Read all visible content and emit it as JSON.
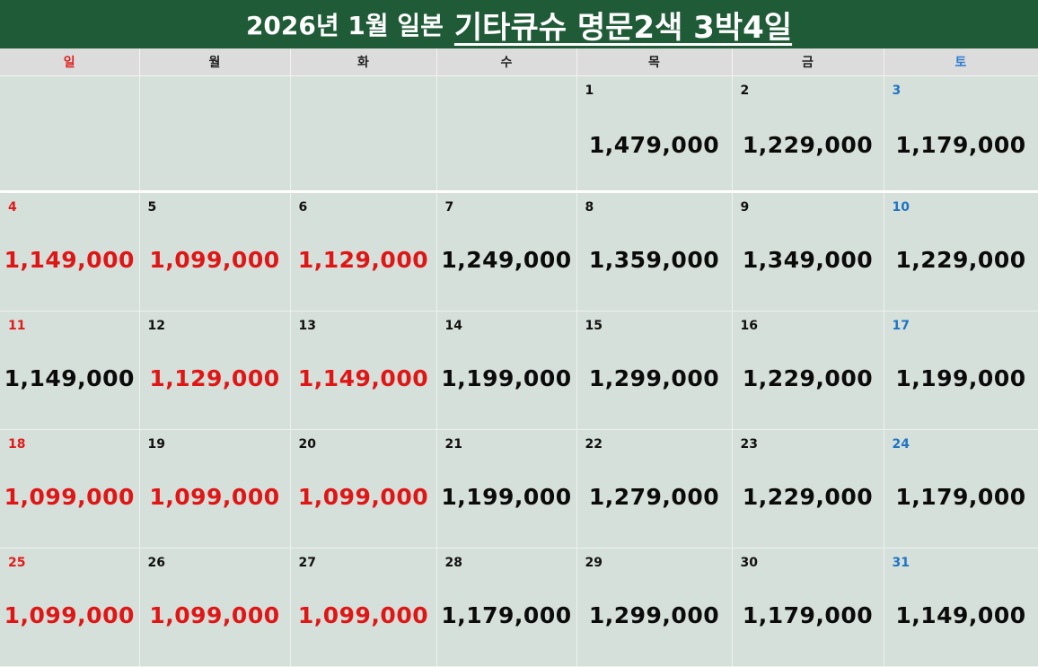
{
  "header": {
    "title_part1": "2026년 1월 일본",
    "title_part2": "기타큐슈 명문2색 3박4일"
  },
  "weekdays": [
    "일",
    "월",
    "화",
    "수",
    "목",
    "금",
    "토"
  ],
  "weeks": [
    [
      {
        "day": "",
        "price": "",
        "red": false
      },
      {
        "day": "",
        "price": "",
        "red": false
      },
      {
        "day": "",
        "price": "",
        "red": false
      },
      {
        "day": "",
        "price": "",
        "red": false
      },
      {
        "day": "1",
        "price": "1,479,000",
        "red": false
      },
      {
        "day": "2",
        "price": "1,229,000",
        "red": false
      },
      {
        "day": "3",
        "price": "1,179,000",
        "red": false
      }
    ],
    [
      {
        "day": "4",
        "price": "1,149,000",
        "red": true
      },
      {
        "day": "5",
        "price": "1,099,000",
        "red": true
      },
      {
        "day": "6",
        "price": "1,129,000",
        "red": true
      },
      {
        "day": "7",
        "price": "1,249,000",
        "red": false
      },
      {
        "day": "8",
        "price": "1,359,000",
        "red": false
      },
      {
        "day": "9",
        "price": "1,349,000",
        "red": false
      },
      {
        "day": "10",
        "price": "1,229,000",
        "red": false
      }
    ],
    [
      {
        "day": "11",
        "price": "1,149,000",
        "red": false
      },
      {
        "day": "12",
        "price": "1,129,000",
        "red": true
      },
      {
        "day": "13",
        "price": "1,149,000",
        "red": true
      },
      {
        "day": "14",
        "price": "1,199,000",
        "red": false
      },
      {
        "day": "15",
        "price": "1,299,000",
        "red": false
      },
      {
        "day": "16",
        "price": "1,229,000",
        "red": false
      },
      {
        "day": "17",
        "price": "1,199,000",
        "red": false
      }
    ],
    [
      {
        "day": "18",
        "price": "1,099,000",
        "red": true
      },
      {
        "day": "19",
        "price": "1,099,000",
        "red": true
      },
      {
        "day": "20",
        "price": "1,099,000",
        "red": true
      },
      {
        "day": "21",
        "price": "1,199,000",
        "red": false
      },
      {
        "day": "22",
        "price": "1,279,000",
        "red": false
      },
      {
        "day": "23",
        "price": "1,229,000",
        "red": false
      },
      {
        "day": "24",
        "price": "1,179,000",
        "red": false
      }
    ],
    [
      {
        "day": "25",
        "price": "1,099,000",
        "red": true
      },
      {
        "day": "26",
        "price": "1,099,000",
        "red": true
      },
      {
        "day": "27",
        "price": "1,099,000",
        "red": true
      },
      {
        "day": "28",
        "price": "1,179,000",
        "red": false
      },
      {
        "day": "29",
        "price": "1,299,000",
        "red": false
      },
      {
        "day": "30",
        "price": "1,179,000",
        "red": false
      },
      {
        "day": "31",
        "price": "1,149,000",
        "red": false
      }
    ]
  ],
  "colors": {
    "header_bg": "#1f5b36",
    "sunday": "#e01b1b",
    "saturday": "#1f74c4",
    "sale_price": "#e01616"
  }
}
